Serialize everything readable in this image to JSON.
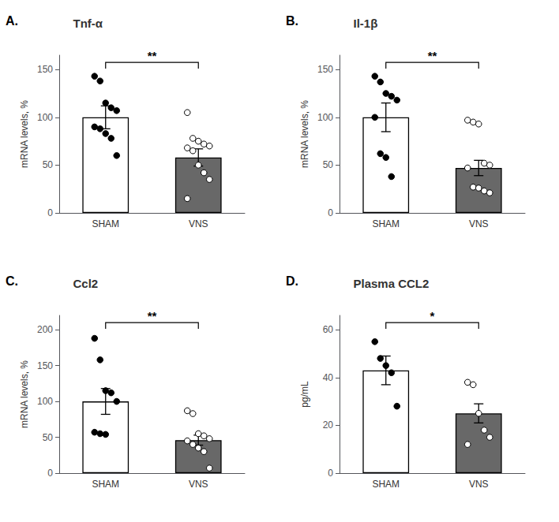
{
  "chart_data": [
    {
      "type": "bar",
      "title": "Tnf-α",
      "panel_label": "A.",
      "ylabel": "mRNA levels, %",
      "categories": [
        "SHAM",
        "VNS"
      ],
      "values": [
        100,
        58
      ],
      "errors": [
        12,
        9
      ],
      "colors": [
        "white",
        "#686868"
      ],
      "points": [
        [
          143,
          138,
          115,
          110,
          107,
          90,
          88,
          83,
          78,
          60
        ],
        [
          105,
          78,
          75,
          72,
          70,
          68,
          65,
          50,
          42,
          35,
          15
        ]
      ],
      "significance": "**",
      "ylim": [
        0,
        165
      ],
      "yticks": [
        0,
        50,
        100,
        150
      ],
      "grid": false
    },
    {
      "type": "bar",
      "title": "Il-1β",
      "panel_label": "B.",
      "ylabel": "mRNA levels, %",
      "categories": [
        "SHAM",
        "VNS"
      ],
      "values": [
        100,
        47
      ],
      "errors": [
        15,
        8
      ],
      "colors": [
        "white",
        "#686868"
      ],
      "points": [
        [
          143,
          137,
          125,
          122,
          118,
          100,
          62,
          58,
          38
        ],
        [
          97,
          95,
          93,
          52,
          50,
          47,
          27,
          26,
          23,
          21
        ]
      ],
      "significance": "**",
      "ylim": [
        0,
        165
      ],
      "yticks": [
        0,
        50,
        100,
        150
      ],
      "grid": false
    },
    {
      "type": "bar",
      "title": "Ccl2",
      "panel_label": "C.",
      "ylabel": "mRNA levels, %",
      "categories": [
        "SHAM",
        "VNS"
      ],
      "values": [
        100,
        46
      ],
      "errors": [
        18,
        7
      ],
      "colors": [
        "white",
        "#686868"
      ],
      "points": [
        [
          188,
          158,
          115,
          112,
          100,
          57,
          55,
          54
        ],
        [
          87,
          83,
          55,
          52,
          48,
          45,
          40,
          35,
          30,
          7
        ]
      ],
      "significance": "**",
      "ylim": [
        0,
        220
      ],
      "yticks": [
        0,
        50,
        100,
        150,
        200
      ],
      "grid": false
    },
    {
      "type": "bar",
      "title": "Plasma CCL2",
      "panel_label": "D.",
      "ylabel": "pg/mL",
      "categories": [
        "SHAM",
        "VNS"
      ],
      "values": [
        43,
        25
      ],
      "errors": [
        6,
        4
      ],
      "colors": [
        "white",
        "#686868"
      ],
      "points": [
        [
          55,
          48,
          45,
          42,
          28
        ],
        [
          38,
          37,
          25,
          18,
          15,
          12
        ]
      ],
      "significance": "*",
      "ylim": [
        0,
        66
      ],
      "yticks": [
        0,
        20,
        40,
        60
      ],
      "grid": false
    }
  ]
}
